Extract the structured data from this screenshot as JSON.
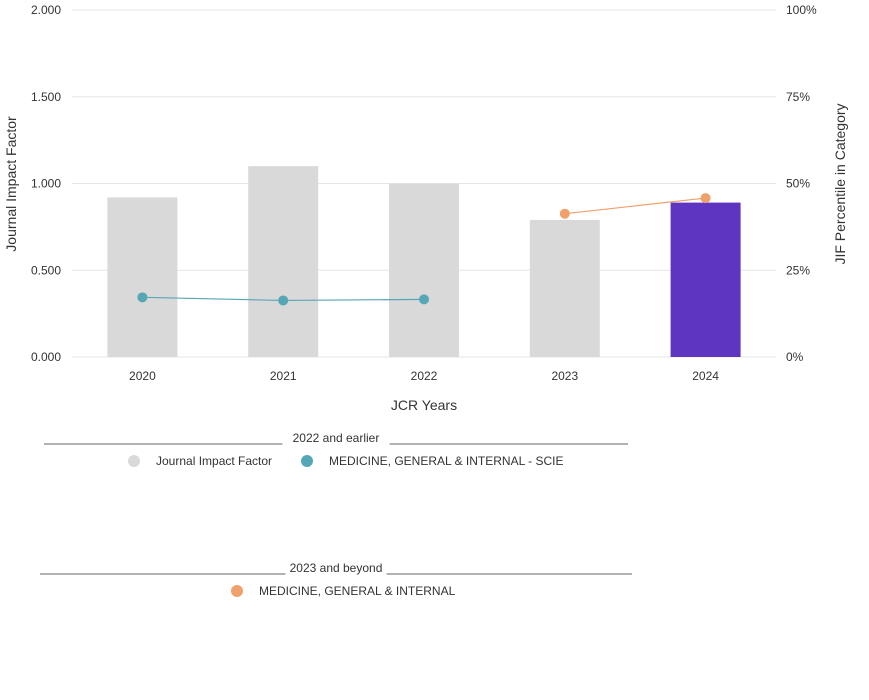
{
  "chart_data": {
    "type": "bar",
    "categories": [
      "2020",
      "2021",
      "2022",
      "2023",
      "2024"
    ],
    "bars": {
      "name": "Journal Impact Factor",
      "values": [
        0.92,
        1.1,
        1.0,
        0.79,
        0.89
      ],
      "colors": [
        "#d9d9d9",
        "#d9d9d9",
        "#d9d9d9",
        "#d9d9d9",
        "#5e35c1"
      ]
    },
    "percentile_series": [
      {
        "name": "MEDICINE, GENERAL & INTERNAL - SCIE",
        "color": "#55a7b5",
        "x": [
          "2020",
          "2021",
          "2022"
        ],
        "values": [
          17.2,
          16.3,
          16.6
        ]
      },
      {
        "name": "MEDICINE, GENERAL & INTERNAL",
        "color": "#f0a06a",
        "x": [
          "2023",
          "2024"
        ],
        "values": [
          41.3,
          45.8
        ]
      }
    ],
    "y_left": {
      "label": "Journal Impact Factor",
      "ylim": [
        0,
        2
      ],
      "ticks": [
        "0.000",
        "0.500",
        "1.000",
        "1.500",
        "2.000"
      ]
    },
    "y_right": {
      "label": "JIF Percentile in Category",
      "ylim": [
        0,
        100
      ],
      "ticks": [
        "0%",
        "25%",
        "50%",
        "75%",
        "100%"
      ]
    },
    "xlabel": "JCR Years",
    "grid": true,
    "legend": {
      "group1_title": "2022 and earlier",
      "group1_items": [
        {
          "label": "Journal Impact Factor",
          "color": "#d9d9d9"
        },
        {
          "label": "MEDICINE, GENERAL & INTERNAL - SCIE",
          "color": "#55a7b5"
        }
      ],
      "group2_title": "2023 and beyond",
      "group2_items": [
        {
          "label": "MEDICINE, GENERAL & INTERNAL",
          "color": "#f0a06a"
        }
      ]
    }
  }
}
